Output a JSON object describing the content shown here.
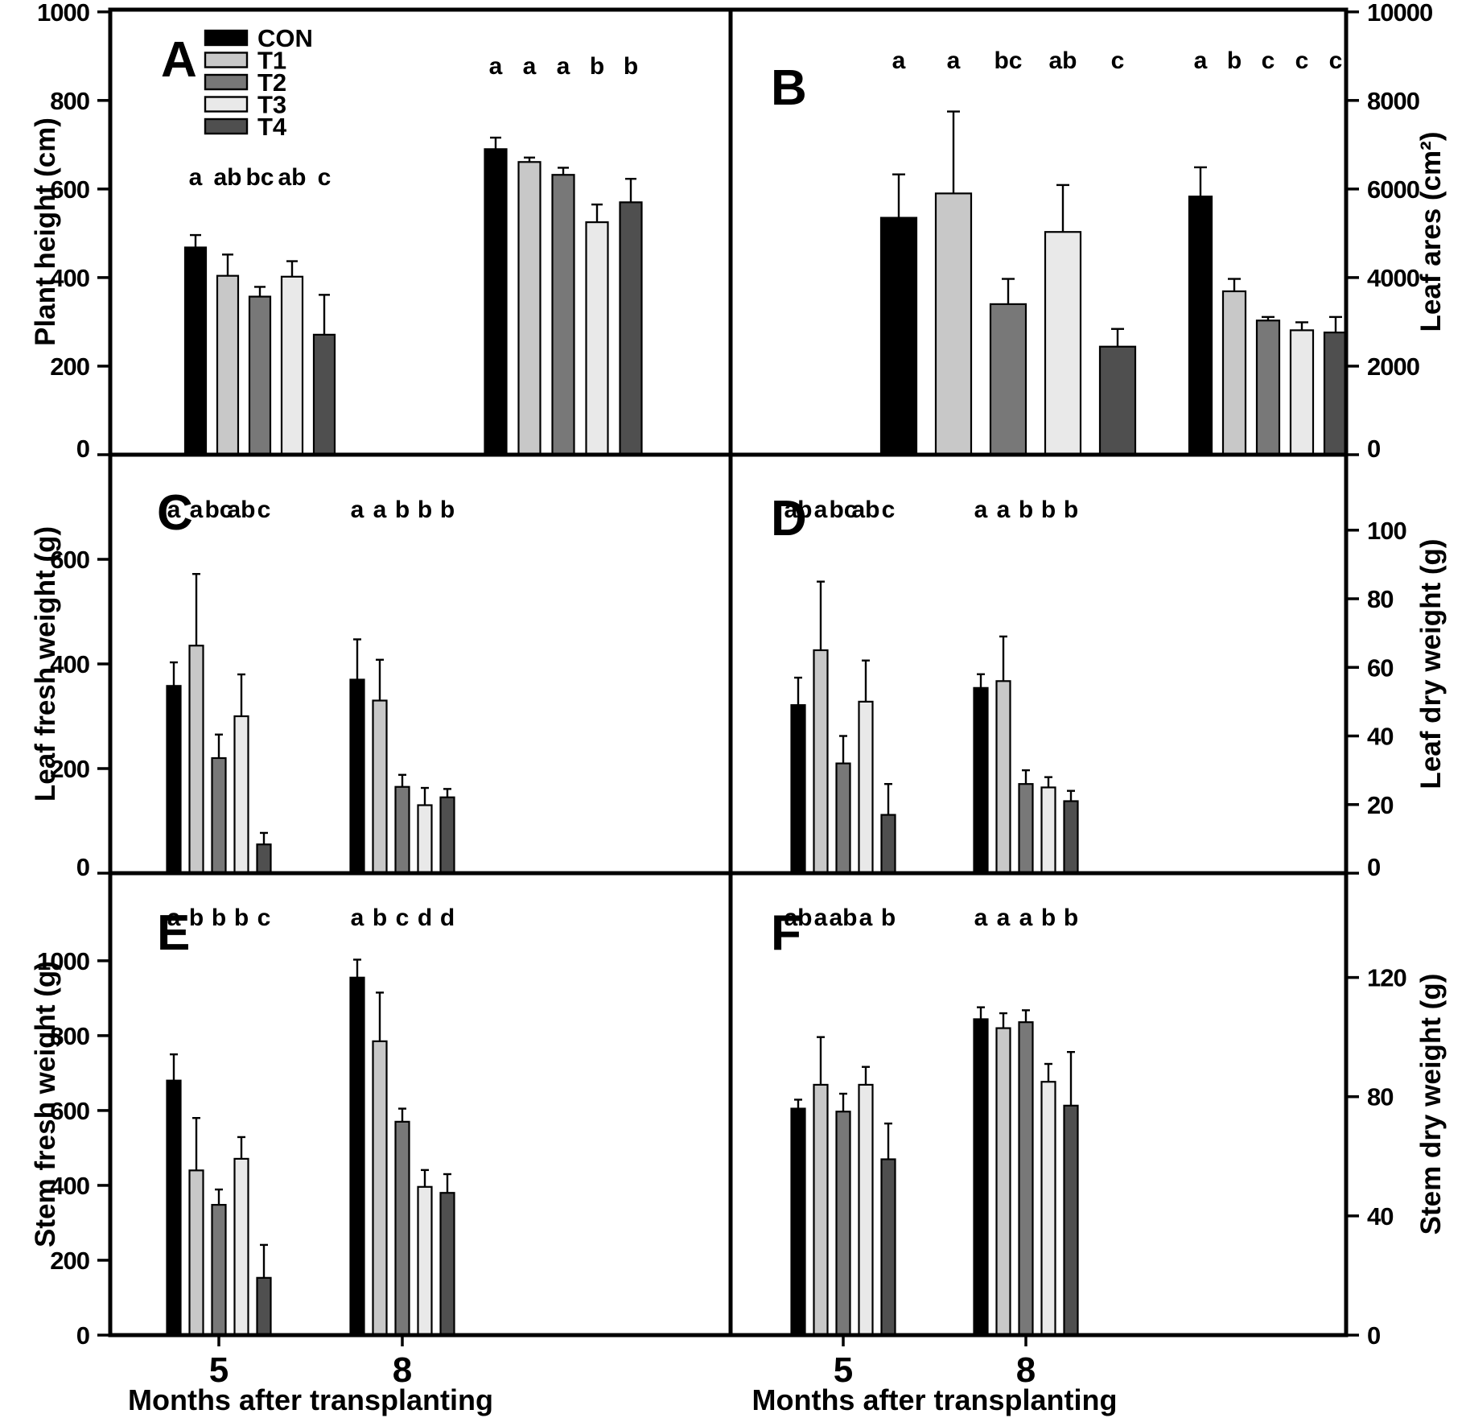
{
  "figure": {
    "x_axis_title": "Months after transplanting",
    "x_categories": [
      "5",
      "8"
    ],
    "legend": {
      "entries": [
        {
          "label": "CON",
          "color": "#000000"
        },
        {
          "label": "T1",
          "color": "#c8c8c8"
        },
        {
          "label": "T2",
          "color": "#787878"
        },
        {
          "label": "T3",
          "color": "#e9e9e9"
        },
        {
          "label": "T4",
          "color": "#4f4f4f"
        }
      ]
    }
  },
  "chart_data": [
    {
      "id": "A",
      "type": "bar",
      "panel_letter": "A",
      "ylabel": "Plant height (cm)",
      "axis_side": "left",
      "ylim": [
        0,
        1005
      ],
      "yticks": [
        0,
        200,
        400,
        600,
        800,
        1000
      ],
      "categories": [
        "5",
        "8"
      ],
      "series": [
        {
          "name": "CON",
          "color": "#000000",
          "values": [
            468,
            690
          ],
          "errors": [
            28,
            26
          ]
        },
        {
          "name": "T1",
          "color": "#c8c8c8",
          "values": [
            404,
            661
          ],
          "errors": [
            48,
            10
          ]
        },
        {
          "name": "T2",
          "color": "#787878",
          "values": [
            357,
            632
          ],
          "errors": [
            22,
            16
          ]
        },
        {
          "name": "T3",
          "color": "#e9e9e9",
          "values": [
            402,
            525
          ],
          "errors": [
            35,
            40
          ]
        },
        {
          "name": "T4",
          "color": "#4f4f4f",
          "values": [
            271,
            570
          ],
          "errors": [
            90,
            53
          ]
        }
      ],
      "sig_letters": [
        [
          "a",
          "ab",
          "bc",
          "ab",
          "c"
        ],
        [
          "a",
          "a",
          "a",
          "b",
          "b"
        ]
      ]
    },
    {
      "id": "B",
      "type": "bar",
      "panel_letter": "B",
      "ylabel": "Leaf ares (cm²)",
      "axis_side": "right",
      "ylim": [
        0,
        10050
      ],
      "yticks": [
        0,
        2000,
        4000,
        6000,
        8000,
        10000
      ],
      "categories": [
        "5",
        "8"
      ],
      "series": [
        {
          "name": "CON",
          "color": "#000000",
          "values": [
            5350,
            5830
          ],
          "errors": [
            980,
            660
          ]
        },
        {
          "name": "T1",
          "color": "#c8c8c8",
          "values": [
            5900,
            3690
          ],
          "errors": [
            1850,
            280
          ]
        },
        {
          "name": "T2",
          "color": "#787878",
          "values": [
            3400,
            3030
          ],
          "errors": [
            570,
            80
          ]
        },
        {
          "name": "T3",
          "color": "#e9e9e9",
          "values": [
            5030,
            2810
          ],
          "errors": [
            1060,
            180
          ]
        },
        {
          "name": "T4",
          "color": "#4f4f4f",
          "values": [
            2440,
            2760
          ],
          "errors": [
            400,
            350
          ]
        }
      ],
      "sig_letters": [
        [
          "a",
          "a",
          "bc",
          "ab",
          "c"
        ],
        [
          "a",
          "b",
          "c",
          "c",
          "c"
        ]
      ]
    },
    {
      "id": "C",
      "type": "bar",
      "panel_letter": "C",
      "ylabel": "Leaf fresh weight (g)",
      "axis_side": "left",
      "ylim": [
        0,
        800
      ],
      "yticks": [
        0,
        200,
        400,
        600
      ],
      "categories": [
        "5",
        "8"
      ],
      "series": [
        {
          "name": "CON",
          "color": "#000000",
          "values": [
            358,
            370
          ],
          "errors": [
            45,
            77
          ]
        },
        {
          "name": "T1",
          "color": "#c8c8c8",
          "values": [
            435,
            330
          ],
          "errors": [
            137,
            78
          ]
        },
        {
          "name": "T2",
          "color": "#787878",
          "values": [
            220,
            165
          ],
          "errors": [
            45,
            23
          ]
        },
        {
          "name": "T3",
          "color": "#e9e9e9",
          "values": [
            300,
            130
          ],
          "errors": [
            80,
            33
          ]
        },
        {
          "name": "T4",
          "color": "#4f4f4f",
          "values": [
            55,
            145
          ],
          "errors": [
            22,
            16
          ]
        }
      ],
      "sig_letters": [
        [
          "a",
          "a",
          "bc",
          "ab",
          "c"
        ],
        [
          "a",
          "a",
          "b",
          "b",
          "b"
        ]
      ]
    },
    {
      "id": "D",
      "type": "bar",
      "panel_letter": "D",
      "ylabel": "Leaf dry weight (g)",
      "axis_side": "right",
      "ylim": [
        0,
        122
      ],
      "yticks": [
        0,
        20,
        40,
        60,
        80,
        100
      ],
      "categories": [
        "5",
        "8"
      ],
      "series": [
        {
          "name": "CON",
          "color": "#000000",
          "values": [
            49,
            54
          ],
          "errors": [
            8,
            4
          ]
        },
        {
          "name": "T1",
          "color": "#c8c8c8",
          "values": [
            65,
            56
          ],
          "errors": [
            20,
            13
          ]
        },
        {
          "name": "T2",
          "color": "#787878",
          "values": [
            32,
            26
          ],
          "errors": [
            8,
            4
          ]
        },
        {
          "name": "T3",
          "color": "#e9e9e9",
          "values": [
            50,
            25
          ],
          "errors": [
            12,
            3
          ]
        },
        {
          "name": "T4",
          "color": "#4f4f4f",
          "values": [
            17,
            21
          ],
          "errors": [
            9,
            3
          ]
        }
      ],
      "sig_letters": [
        [
          "ab",
          "a",
          "bc",
          "ab",
          "c"
        ],
        [
          "a",
          "a",
          "b",
          "b",
          "b"
        ]
      ]
    },
    {
      "id": "E",
      "type": "bar",
      "panel_letter": "E",
      "ylabel": "Stem fresh weight (g)",
      "axis_side": "left",
      "ylim": [
        0,
        1234
      ],
      "yticks": [
        0,
        200,
        400,
        600,
        800,
        1000
      ],
      "categories": [
        "5",
        "8"
      ],
      "series": [
        {
          "name": "CON",
          "color": "#000000",
          "values": [
            680,
            955
          ],
          "errors": [
            70,
            48
          ]
        },
        {
          "name": "T1",
          "color": "#c8c8c8",
          "values": [
            440,
            785
          ],
          "errors": [
            140,
            130
          ]
        },
        {
          "name": "T2",
          "color": "#787878",
          "values": [
            348,
            570
          ],
          "errors": [
            41,
            35
          ]
        },
        {
          "name": "T3",
          "color": "#e9e9e9",
          "values": [
            471,
            396
          ],
          "errors": [
            58,
            45
          ]
        },
        {
          "name": "T4",
          "color": "#4f4f4f",
          "values": [
            153,
            380
          ],
          "errors": [
            88,
            50
          ]
        }
      ],
      "sig_letters": [
        [
          "a",
          "b",
          "b",
          "b",
          "c"
        ],
        [
          "a",
          "b",
          "c",
          "d",
          "d"
        ]
      ]
    },
    {
      "id": "F",
      "type": "bar",
      "panel_letter": "F",
      "ylabel": "Stem dry weight (g)",
      "axis_side": "right",
      "ylim": [
        0,
        155
      ],
      "yticks": [
        0,
        40,
        80,
        120
      ],
      "categories": [
        "5",
        "8"
      ],
      "series": [
        {
          "name": "CON",
          "color": "#000000",
          "values": [
            76,
            106
          ],
          "errors": [
            3,
            4
          ]
        },
        {
          "name": "T1",
          "color": "#c8c8c8",
          "values": [
            84,
            103
          ],
          "errors": [
            16,
            5
          ]
        },
        {
          "name": "T2",
          "color": "#787878",
          "values": [
            75,
            105
          ],
          "errors": [
            6,
            4
          ]
        },
        {
          "name": "T3",
          "color": "#e9e9e9",
          "values": [
            84,
            85
          ],
          "errors": [
            6,
            6
          ]
        },
        {
          "name": "T4",
          "color": "#4f4f4f",
          "values": [
            59,
            77
          ],
          "errors": [
            12,
            18
          ]
        }
      ],
      "sig_letters": [
        [
          "ab",
          "a",
          "ab",
          "a",
          "b"
        ],
        [
          "a",
          "a",
          "a",
          "b",
          "b"
        ]
      ]
    }
  ]
}
